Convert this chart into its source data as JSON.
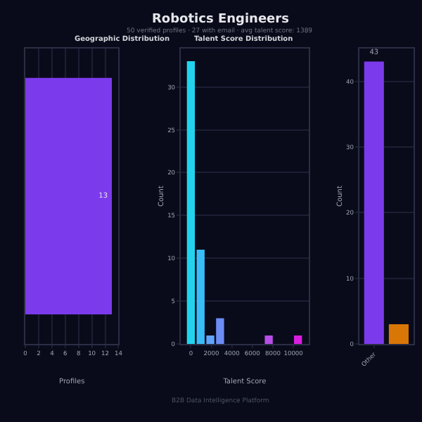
{
  "chart_data": [
    {
      "type": "bar",
      "title": "Geographic Distribution",
      "orientation": "horizontal",
      "categories": [
        null
      ],
      "values": [
        13
      ],
      "color": "#7c3aed",
      "data_labels": true,
      "xlabel": "Profiles",
      "xlim": [
        0,
        14
      ],
      "xticks": [
        0,
        2,
        4,
        6,
        8,
        10,
        12,
        14
      ],
      "grid": "x",
      "annotations": [
        "Robotics Engineers",
        "50 verified profiles · 27 with email · avg talent score: 1389",
        "B2B Data Intelligence Platform"
      ]
    },
    {
      "type": "histogram",
      "title": "Talent Score Distribution",
      "bins": [
        -475,
        475,
        1425,
        2375,
        3325,
        4275,
        5225,
        6175,
        7125,
        8075,
        9025,
        9975,
        10925
      ],
      "values": [
        33,
        11,
        1,
        3,
        0,
        0,
        0,
        0,
        1,
        0,
        0,
        1
      ],
      "colors": [
        "#22d3ee",
        "#38bdf8",
        "#60a5fa",
        "#6c8cf5",
        "#7c7cf0",
        "#8b6cec",
        "#9a5ce8",
        "#a94ce4",
        "#b84ee8",
        "#c83ae6",
        "#d62ae4",
        "#d91ee0"
      ],
      "xlabel": "Talent Score",
      "ylabel": "Count",
      "xlim": [
        -1000,
        11500
      ],
      "xticks": [
        0,
        2000,
        4000,
        6000,
        8000,
        10000
      ],
      "ylim": [
        0,
        34.5
      ],
      "yticks": [
        0,
        5,
        10,
        15,
        20,
        25,
        30
      ],
      "grid": "y"
    },
    {
      "type": "bar",
      "categories": [
        "Other",
        null
      ],
      "values": [
        43,
        3
      ],
      "colors": [
        "#7c3aed",
        "#d97706"
      ],
      "value_labels": [
        "43",
        null
      ],
      "ylabel": "Count",
      "ylim": [
        0,
        45
      ],
      "yticks": [
        0,
        10,
        20,
        30,
        40
      ],
      "grid": "y"
    }
  ]
}
